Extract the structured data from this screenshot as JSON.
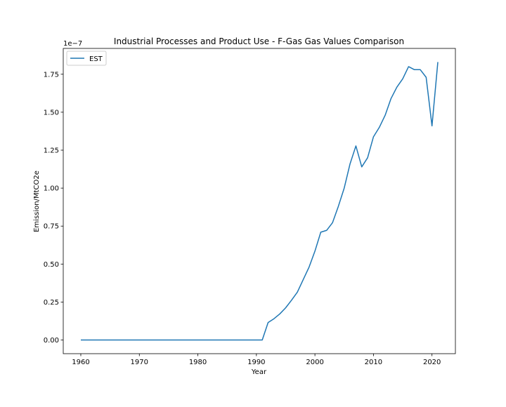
{
  "chart_data": {
    "type": "line",
    "title": "Industrial Processes and Product Use - F-Gas Gas Values Comparison",
    "xlabel": "Year",
    "ylabel": "Emission/MtCO2e",
    "offset_text": "1e−7",
    "xlim": [
      1957,
      2024
    ],
    "ylim": [
      -0.09,
      1.92
    ],
    "y_scale_exponent": -7,
    "x_ticks": [
      1960,
      1970,
      1980,
      1990,
      2000,
      2010,
      2020
    ],
    "x_tick_labels": [
      "1960",
      "1970",
      "1980",
      "1990",
      "2000",
      "2010",
      "2020"
    ],
    "y_ticks": [
      0,
      0.25,
      0.5,
      0.75,
      1.0,
      1.25,
      1.5,
      1.75
    ],
    "y_tick_labels": [
      "0.00",
      "0.25",
      "0.50",
      "0.75",
      "1.00",
      "1.25",
      "1.50",
      "1.75"
    ],
    "grid": false,
    "legend_position": "upper-left",
    "series": [
      {
        "name": "EST",
        "color": "#1f77b4",
        "x": [
          1960,
          1961,
          1962,
          1963,
          1964,
          1965,
          1966,
          1967,
          1968,
          1969,
          1970,
          1971,
          1972,
          1973,
          1974,
          1975,
          1976,
          1977,
          1978,
          1979,
          1980,
          1981,
          1982,
          1983,
          1984,
          1985,
          1986,
          1987,
          1988,
          1989,
          1990,
          1991,
          1992,
          1993,
          1994,
          1995,
          1996,
          1997,
          1998,
          1999,
          2000,
          2001,
          2002,
          2003,
          2004,
          2005,
          2006,
          2007,
          2008,
          2009,
          2010,
          2011,
          2012,
          2013,
          2014,
          2015,
          2016,
          2017,
          2018,
          2019,
          2020,
          2021
        ],
        "values": [
          0,
          0,
          0,
          0,
          0,
          0,
          0,
          0,
          0,
          0,
          0,
          0,
          0,
          0,
          0,
          0,
          0,
          0,
          0,
          0,
          0,
          0,
          0,
          0,
          0,
          0,
          0,
          0,
          0,
          0,
          0,
          0,
          0.115,
          0.14,
          0.172,
          0.212,
          0.262,
          0.315,
          0.398,
          0.48,
          0.585,
          0.71,
          0.722,
          0.772,
          0.88,
          1.0,
          1.16,
          1.278,
          1.14,
          1.2,
          1.338,
          1.4,
          1.48,
          1.59,
          1.665,
          1.72,
          1.8,
          1.78,
          1.78,
          1.73,
          1.41,
          1.83
        ]
      }
    ]
  }
}
